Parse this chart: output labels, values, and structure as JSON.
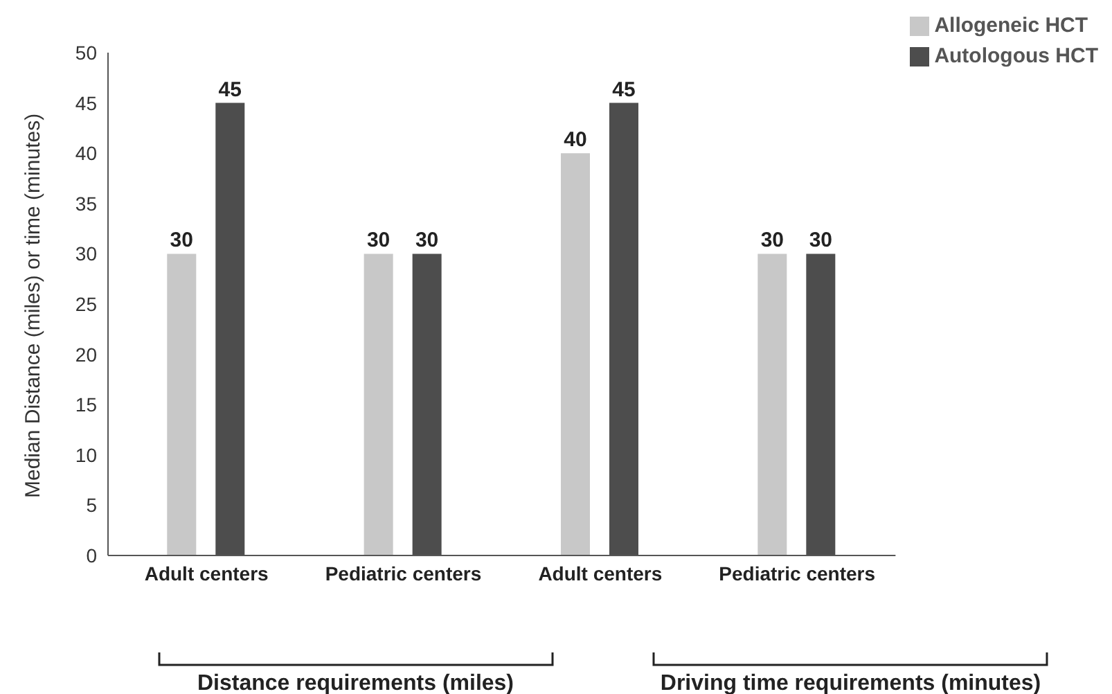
{
  "chart_data": {
    "type": "bar",
    "ylabel": "Median Distance (miles) or time (minutes)",
    "categories": [
      "Adult centers",
      "Pediatric centers",
      "Adult centers",
      "Pediatric centers"
    ],
    "series": [
      {
        "name": "Allogeneic HCT",
        "color": "#c8c8c8",
        "values": [
          30,
          30,
          40,
          30
        ]
      },
      {
        "name": "Autologous HCT",
        "color": "#4d4d4d",
        "values": [
          45,
          30,
          45,
          30
        ]
      }
    ],
    "ylim": [
      0,
      50
    ],
    "yticks": [
      0,
      5,
      10,
      15,
      20,
      25,
      30,
      35,
      40,
      45,
      50
    ],
    "grid": false,
    "legend": "top right",
    "data_labels": true,
    "annotations": [
      "Distance requirements (miles)",
      "Driving time requirements (minutes)"
    ]
  }
}
